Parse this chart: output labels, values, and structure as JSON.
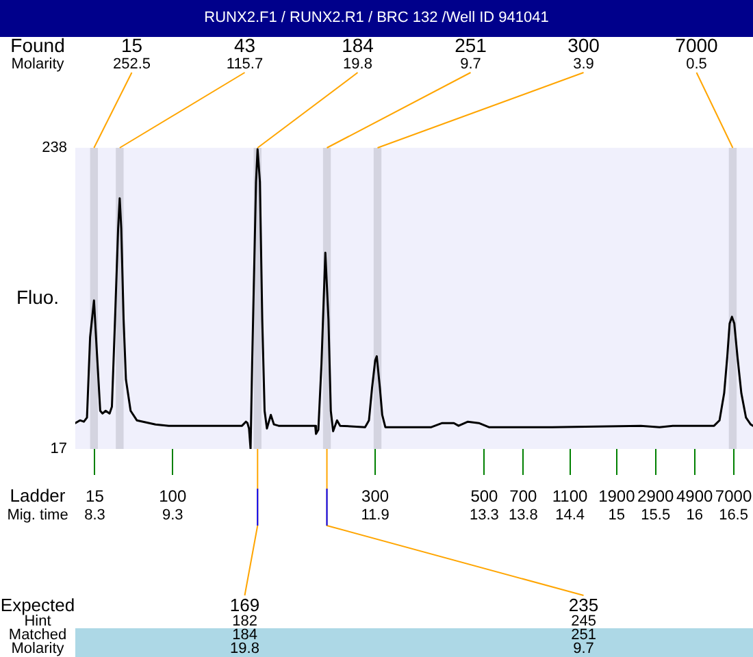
{
  "chart_data": {
    "type": "line",
    "title": "RUNX2.F1 / RUNX2.R1 / BRC 132 /Well ID 941041",
    "ylabel": "Fluo.",
    "xlabel": "Mig. time",
    "x": [
      8.05,
      8.11,
      8.16,
      8.2,
      8.24,
      8.29,
      8.32,
      8.35,
      8.37,
      8.4,
      8.44,
      8.49,
      8.52,
      8.56,
      8.6,
      8.62,
      8.64,
      8.67,
      8.7,
      8.76,
      8.84,
      9.08,
      9.25,
      9.6,
      10.01,
      10.19,
      10.24,
      10.26,
      10.28,
      10.3,
      10.32,
      10.37,
      10.39,
      10.42,
      10.45,
      10.48,
      10.51,
      10.56,
      10.6,
      10.66,
      11.13,
      11.14,
      11.17,
      11.21,
      11.26,
      11.3,
      11.33,
      11.36,
      11.41,
      11.45,
      11.77,
      11.82,
      11.86,
      11.9,
      11.92,
      11.96,
      11.99,
      12.03,
      12.62,
      12.76,
      12.91,
      12.97,
      13.09,
      13.23,
      13.36,
      14.17,
      15.31,
      15.55,
      15.72,
      16.25,
      16.32,
      16.38,
      16.42,
      16.45,
      16.48,
      16.51,
      16.55,
      16.6,
      16.66,
      16.72,
      16.75
    ],
    "series": [
      {
        "color": "#000000",
        "values": [
          36,
          38,
          37,
          40,
          99,
          126,
          95,
          65,
          45,
          43,
          45,
          43,
          48,
          112,
          179,
          201,
          179,
          112,
          68,
          45,
          38,
          35,
          34,
          34,
          34,
          34,
          37,
          36,
          32,
          17,
          79,
          213,
          237,
          213,
          112,
          45,
          32,
          42,
          35,
          34,
          34,
          28,
          31,
          79,
          161,
          112,
          45,
          30,
          38,
          34,
          33,
          38,
          62,
          82,
          85,
          62,
          42,
          33,
          33,
          36,
          36,
          34,
          37,
          36,
          33,
          33,
          34,
          33,
          34,
          34,
          38,
          58,
          85,
          109,
          114,
          109,
          85,
          58,
          40,
          35,
          34
        ]
      }
    ],
    "xlim": [
      8.05,
      16.75
    ],
    "xticks": [
      8.3,
      9.3,
      11.9,
      13.3,
      13.8,
      14.4,
      15,
      15.5,
      16,
      16.5
    ],
    "ylim": [
      17,
      238
    ],
    "yticks": [
      17,
      238
    ],
    "bands": [
      {
        "axis": "x",
        "from": 8.24,
        "to": 8.34,
        "label": "15",
        "color": "#d4d4e0"
      },
      {
        "axis": "x",
        "from": 8.57,
        "to": 8.67,
        "label": "43",
        "color": "#d4d4e0"
      },
      {
        "axis": "x",
        "from": 10.34,
        "to": 10.44,
        "label": "184",
        "color": "#d4d4e0"
      },
      {
        "axis": "x",
        "from": 11.23,
        "to": 11.33,
        "label": "251",
        "color": "#d4d4e0"
      },
      {
        "axis": "x",
        "from": 11.88,
        "to": 11.98,
        "label": "300",
        "color": "#d4d4e0"
      },
      {
        "axis": "x",
        "from": 16.44,
        "to": 16.54,
        "label": "7000",
        "color": "#d4d4e0"
      }
    ],
    "annotations": [
      "Found",
      "Molarity",
      {
        "text": "252.5",
        "x": 8.29,
        "y": 238
      },
      {
        "text": "115.7",
        "x": 8.62,
        "y": 238
      },
      {
        "text": "19.8",
        "x": 10.39,
        "y": 238
      },
      {
        "text": "9.7",
        "x": 11.28,
        "y": 238
      },
      {
        "text": "3.9",
        "x": 11.93,
        "y": 238
      },
      {
        "text": "0.5",
        "x": 16.49,
        "y": 238
      },
      "Ladder",
      "15",
      "100",
      "300",
      "500",
      "700",
      "1100",
      "1900",
      "2900",
      "4900",
      "7000",
      "Expected",
      {
        "text": "169",
        "x": 10.39,
        "y": 17
      },
      {
        "text": "235",
        "x": 11.28,
        "y": 17
      },
      "Hint",
      "182",
      "245",
      "Matched",
      "184",
      "251",
      "Molarity",
      "19.8",
      "9.7"
    ]
  }
}
